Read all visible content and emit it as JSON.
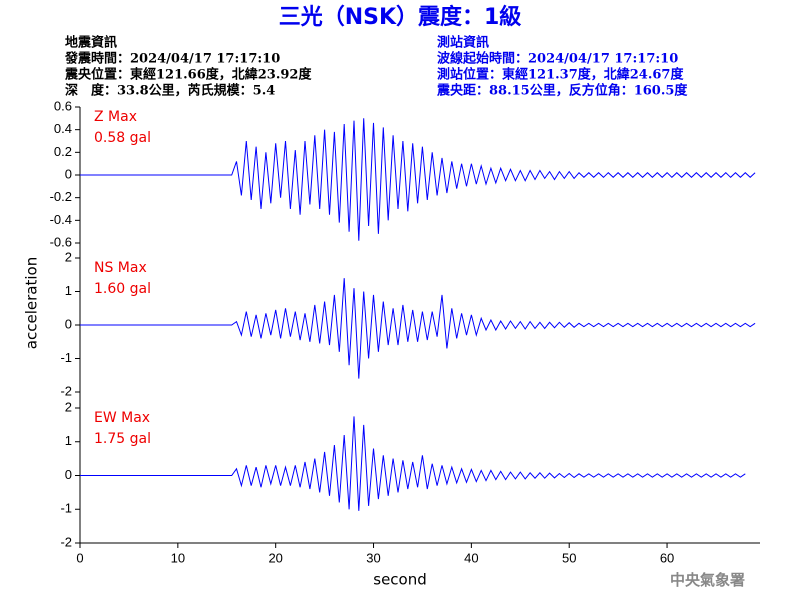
{
  "header": {
    "title": "三光（NSK）震度：1級",
    "left": [
      "地震資訊",
      "發震時間：2024/04/17 17:17:10",
      "震央位置：東經121.66度，北緯23.92度",
      "深　度：33.8公里，芮氏規模：5.4"
    ],
    "right": [
      "測站資訊",
      "波線起始時間：2024/04/17 17:17:10",
      "測站位置：東經121.37度，北緯24.67度",
      "震央距：88.15公里，反方位角：160.5度"
    ],
    "footer": "中央氣象署"
  },
  "chart_data": {
    "type": "line",
    "xlabel": "second",
    "ylabel": "acceleration",
    "color": "#0000ff",
    "xlim": [
      0,
      69.5
    ],
    "xticks": [
      0,
      10,
      20,
      30,
      40,
      50,
      60
    ],
    "x": [
      0,
      0.5,
      1,
      1.5,
      2,
      2.5,
      3,
      3.5,
      4,
      4.5,
      5,
      5.5,
      6,
      6.5,
      7,
      7.5,
      8,
      8.5,
      9,
      9.5,
      10,
      10.5,
      11,
      11.5,
      12,
      12.5,
      13,
      13.5,
      14,
      14.5,
      15,
      15.5,
      16,
      16.5,
      17,
      17.5,
      18,
      18.5,
      19,
      19.5,
      20,
      20.5,
      21,
      21.5,
      22,
      22.5,
      23,
      23.5,
      24,
      24.5,
      25,
      25.5,
      26,
      26.5,
      27,
      27.5,
      28,
      28.5,
      29,
      29.5,
      30,
      30.5,
      31,
      31.5,
      32,
      32.5,
      33,
      33.5,
      34,
      34.5,
      35,
      35.5,
      36,
      36.5,
      37,
      37.5,
      38,
      38.5,
      39,
      39.5,
      40,
      40.5,
      41,
      41.5,
      42,
      42.5,
      43,
      43.5,
      44,
      44.5,
      45,
      45.5,
      46,
      46.5,
      47,
      47.5,
      48,
      48.5,
      49,
      49.5,
      50,
      50.5,
      51,
      51.5,
      52,
      52.5,
      53,
      53.5,
      54,
      54.5,
      55,
      55.5,
      56,
      56.5,
      57,
      57.5,
      58,
      58.5,
      59,
      59.5,
      60,
      60.5,
      61,
      61.5,
      62,
      62.5,
      63,
      63.5,
      64,
      64.5,
      65,
      65.5,
      66,
      66.5,
      67,
      67.5,
      68,
      68.5,
      69
    ],
    "panels": [
      {
        "label": "Z Max",
        "max_label": "0.58 gal",
        "ylim": [
          -0.6,
          0.6
        ],
        "yticks": [
          0.6,
          0.4,
          0.2,
          0,
          -0.2,
          -0.4,
          -0.6
        ],
        "values": [
          0,
          0,
          0,
          0,
          0,
          0,
          0,
          0,
          0,
          0,
          0,
          0,
          0,
          0,
          0,
          0,
          0,
          0,
          0,
          0,
          0,
          0,
          0,
          0,
          0,
          0,
          0,
          0,
          0,
          0,
          0,
          0,
          0.12,
          -0.18,
          0.3,
          -0.22,
          0.25,
          -0.3,
          0.2,
          -0.25,
          0.28,
          -0.2,
          0.3,
          -0.3,
          0.22,
          -0.35,
          0.3,
          -0.26,
          0.35,
          -0.3,
          0.4,
          -0.35,
          0.38,
          -0.42,
          0.45,
          -0.5,
          0.48,
          -0.58,
          0.5,
          -0.45,
          0.46,
          -0.52,
          0.42,
          -0.4,
          0.35,
          -0.3,
          0.3,
          -0.32,
          0.28,
          -0.25,
          0.25,
          -0.22,
          0.2,
          -0.18,
          0.15,
          -0.16,
          0.12,
          -0.12,
          0.1,
          -0.1,
          0.1,
          -0.08,
          0.08,
          -0.08,
          0.06,
          -0.07,
          0.06,
          -0.05,
          0.05,
          -0.05,
          0.04,
          -0.05,
          0.04,
          -0.04,
          0.04,
          -0.03,
          0.03,
          -0.04,
          0.03,
          -0.03,
          0.03,
          -0.03,
          0.02,
          -0.02,
          0.02,
          -0.02,
          0.02,
          -0.02,
          0.02,
          -0.02,
          0.02,
          -0.02,
          0.02,
          -0.02,
          0.02,
          -0.02,
          0.02,
          -0.02,
          0.02,
          -0.02,
          0.02,
          -0.02,
          0.02,
          -0.02,
          0.02,
          -0.02,
          0.02,
          -0.02,
          0.02,
          -0.02,
          0.02,
          -0.02,
          0.02,
          -0.02,
          0.02,
          -0.02,
          0.02,
          -0.02,
          0.02
        ]
      },
      {
        "label": "NS Max",
        "max_label": "1.60 gal",
        "ylim": [
          -2,
          2
        ],
        "yticks": [
          2,
          1,
          0,
          -1,
          -2
        ],
        "values": [
          0,
          0,
          0,
          0,
          0,
          0,
          0,
          0,
          0,
          0,
          0,
          0,
          0,
          0,
          0,
          0,
          0,
          0,
          0,
          0,
          0,
          0,
          0,
          0,
          0,
          0,
          0,
          0,
          0,
          0,
          0,
          0,
          0.1,
          -0.3,
          0.4,
          -0.35,
          0.3,
          -0.4,
          0.35,
          -0.3,
          0.45,
          -0.4,
          0.5,
          -0.35,
          0.4,
          -0.45,
          0.35,
          -0.5,
          0.6,
          -0.55,
          0.7,
          -0.6,
          0.9,
          -0.8,
          1.4,
          -1.2,
          1.1,
          -1.6,
          1.0,
          -1.0,
          0.9,
          -0.8,
          0.7,
          -0.6,
          0.5,
          -0.6,
          0.6,
          -0.5,
          0.45,
          -0.5,
          0.4,
          -0.45,
          0.4,
          -0.35,
          0.9,
          -0.7,
          0.5,
          -0.4,
          0.35,
          -0.3,
          0.3,
          -0.3,
          0.2,
          -0.15,
          0.15,
          -0.15,
          0.12,
          -0.12,
          0.12,
          -0.1,
          0.1,
          -0.12,
          0.1,
          -0.1,
          0.08,
          -0.1,
          0.08,
          -0.08,
          0.08,
          -0.07,
          0.07,
          -0.07,
          0.05,
          -0.05,
          0.05,
          -0.05,
          0.05,
          -0.05,
          0.05,
          -0.05,
          0.05,
          -0.05,
          0.05,
          -0.05,
          0.05,
          -0.05,
          0.05,
          -0.05,
          0.05,
          -0.05,
          0.05,
          -0.05,
          0.05,
          -0.05,
          0.05,
          -0.05,
          0.05,
          -0.05,
          0.05,
          -0.05,
          0.05,
          -0.05,
          0.05,
          -0.05,
          0.05,
          -0.05,
          0.05,
          -0.05,
          0.05
        ]
      },
      {
        "label": "EW Max",
        "max_label": "1.75 gal",
        "ylim": [
          -2,
          2
        ],
        "yticks": [
          2,
          1,
          0,
          -1,
          -2
        ],
        "values": [
          0,
          0,
          0,
          0,
          0,
          0,
          0,
          0,
          0,
          0,
          0,
          0,
          0,
          0,
          0,
          0,
          0,
          0,
          0,
          0,
          0,
          0,
          0,
          0,
          0,
          0,
          0,
          0,
          0,
          0,
          0,
          0,
          0.2,
          -0.3,
          0.3,
          -0.3,
          0.25,
          -0.35,
          0.3,
          -0.25,
          0.3,
          -0.3,
          0.25,
          -0.3,
          0.3,
          -0.35,
          0.4,
          -0.4,
          0.5,
          -0.5,
          0.7,
          -0.6,
          0.9,
          -0.8,
          1.2,
          -1.0,
          1.75,
          -1.05,
          1.5,
          -0.9,
          0.8,
          -0.7,
          0.6,
          -0.6,
          0.5,
          -0.5,
          0.45,
          -0.4,
          0.4,
          -0.35,
          0.6,
          -0.4,
          0.35,
          -0.3,
          0.3,
          -0.25,
          0.25,
          -0.22,
          0.2,
          -0.2,
          0.18,
          -0.18,
          0.15,
          -0.15,
          0.15,
          -0.12,
          0.12,
          -0.12,
          0.1,
          -0.1,
          0.1,
          -0.1,
          0.08,
          -0.08,
          0.08,
          -0.08,
          0.07,
          -0.07,
          0.06,
          -0.06,
          0.06,
          -0.06,
          0.05,
          -0.05,
          0.05,
          -0.05,
          0.05,
          -0.05,
          0.05,
          -0.05,
          0.05,
          -0.05,
          0.05,
          -0.05,
          0.05,
          -0.05,
          0.05,
          -0.05,
          0.05,
          -0.05,
          0.05,
          -0.05,
          0.05,
          -0.05,
          0.05,
          -0.05,
          0.05,
          -0.05,
          0.05,
          -0.05,
          0.05,
          -0.05,
          0.05,
          -0.05,
          0.05,
          -0.05,
          0.05
        ]
      }
    ]
  }
}
